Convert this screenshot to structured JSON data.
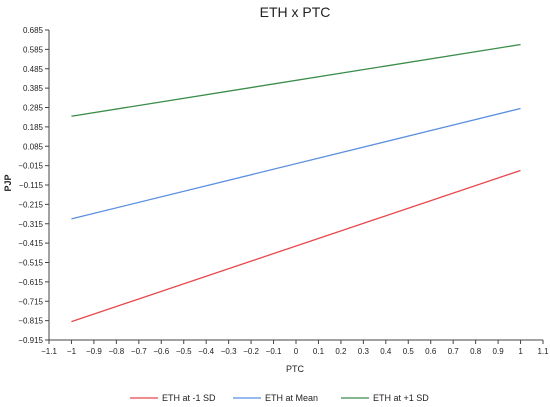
{
  "chart_data": {
    "type": "line",
    "title": "ETH x PTC",
    "xlabel": "PTC",
    "ylabel": "PJP",
    "xlim": [
      -1.1,
      1.1
    ],
    "ylim": [
      -0.915,
      0.685
    ],
    "x_ticks": [
      "−1.1",
      "−1",
      "−0.9",
      "−0.8",
      "−0.7",
      "−0.6",
      "−0.5",
      "−0.4",
      "−0.3",
      "−0.2",
      "−0.1",
      "0",
      "0.1",
      "0.2",
      "0.3",
      "0.4",
      "0.5",
      "0.6",
      "0.7",
      "0.8",
      "0.9",
      "1",
      "1.1"
    ],
    "y_ticks": [
      "0.685",
      "0.585",
      "0.485",
      "0.385",
      "0.285",
      "0.185",
      "0.085",
      "−0.015",
      "−0.115",
      "−0.215",
      "−0.315",
      "−0.415",
      "−0.515",
      "−0.615",
      "−0.715",
      "−0.815",
      "−0.915"
    ],
    "grid": false,
    "legend_position": "bottom",
    "series": [
      {
        "name": "ETH at -1 SD",
        "color": "#e8474c",
        "x": [
          -1,
          1
        ],
        "y": [
          -0.82,
          -0.04
        ]
      },
      {
        "name": "ETH at Mean",
        "color": "#5b8fe0",
        "x": [
          -1,
          1
        ],
        "y": [
          -0.29,
          0.28
        ]
      },
      {
        "name": "ETH at +1 SD",
        "color": "#3a8c4a",
        "x": [
          -1,
          1
        ],
        "y": [
          0.24,
          0.61
        ]
      }
    ]
  }
}
